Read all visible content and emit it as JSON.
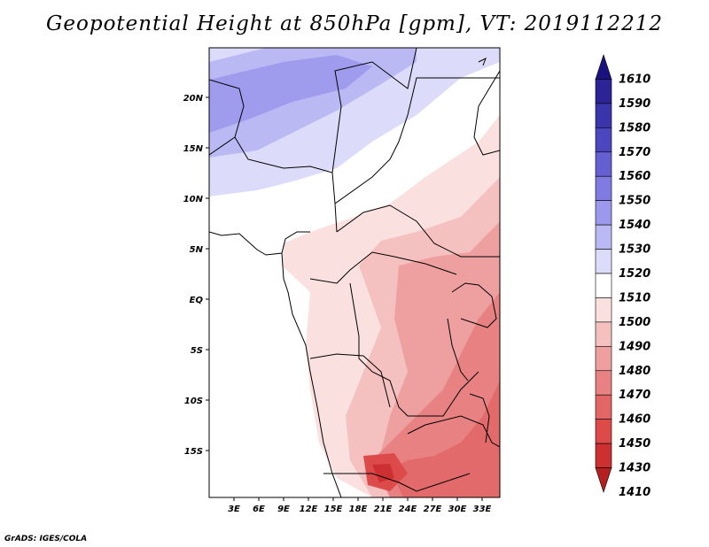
{
  "title": "Geopotential Height at 850hPa [gpm], VT: 2019112212",
  "credit": "GrADS: IGES/COLA",
  "lat_labels": [
    "20N",
    "15N",
    "10N",
    "5N",
    "EQ",
    "5S",
    "10S",
    "15S"
  ],
  "lon_labels": [
    "3E",
    "6E",
    "9E",
    "12E",
    "15E",
    "18E",
    "21E",
    "24E",
    "27E",
    "30E",
    "33E"
  ],
  "colorbar": {
    "levels": [
      "1610",
      "1590",
      "1580",
      "1570",
      "1560",
      "1550",
      "1540",
      "1530",
      "1520",
      "1510",
      "1500",
      "1490",
      "1480",
      "1470",
      "1460",
      "1450",
      "1430",
      "1410"
    ],
    "colors": [
      "#1a1280",
      "#2c2496",
      "#3b35ab",
      "#4c47bf",
      "#6560d1",
      "#7f7be0",
      "#9c99ec",
      "#bbb9f4",
      "#dcdcfa",
      "#ffffff",
      "#fbe0e0",
      "#f5c0c0",
      "#eea0a0",
      "#e88282",
      "#e26666",
      "#dc4a4a",
      "#cc3030",
      "#b51f1f"
    ]
  }
}
